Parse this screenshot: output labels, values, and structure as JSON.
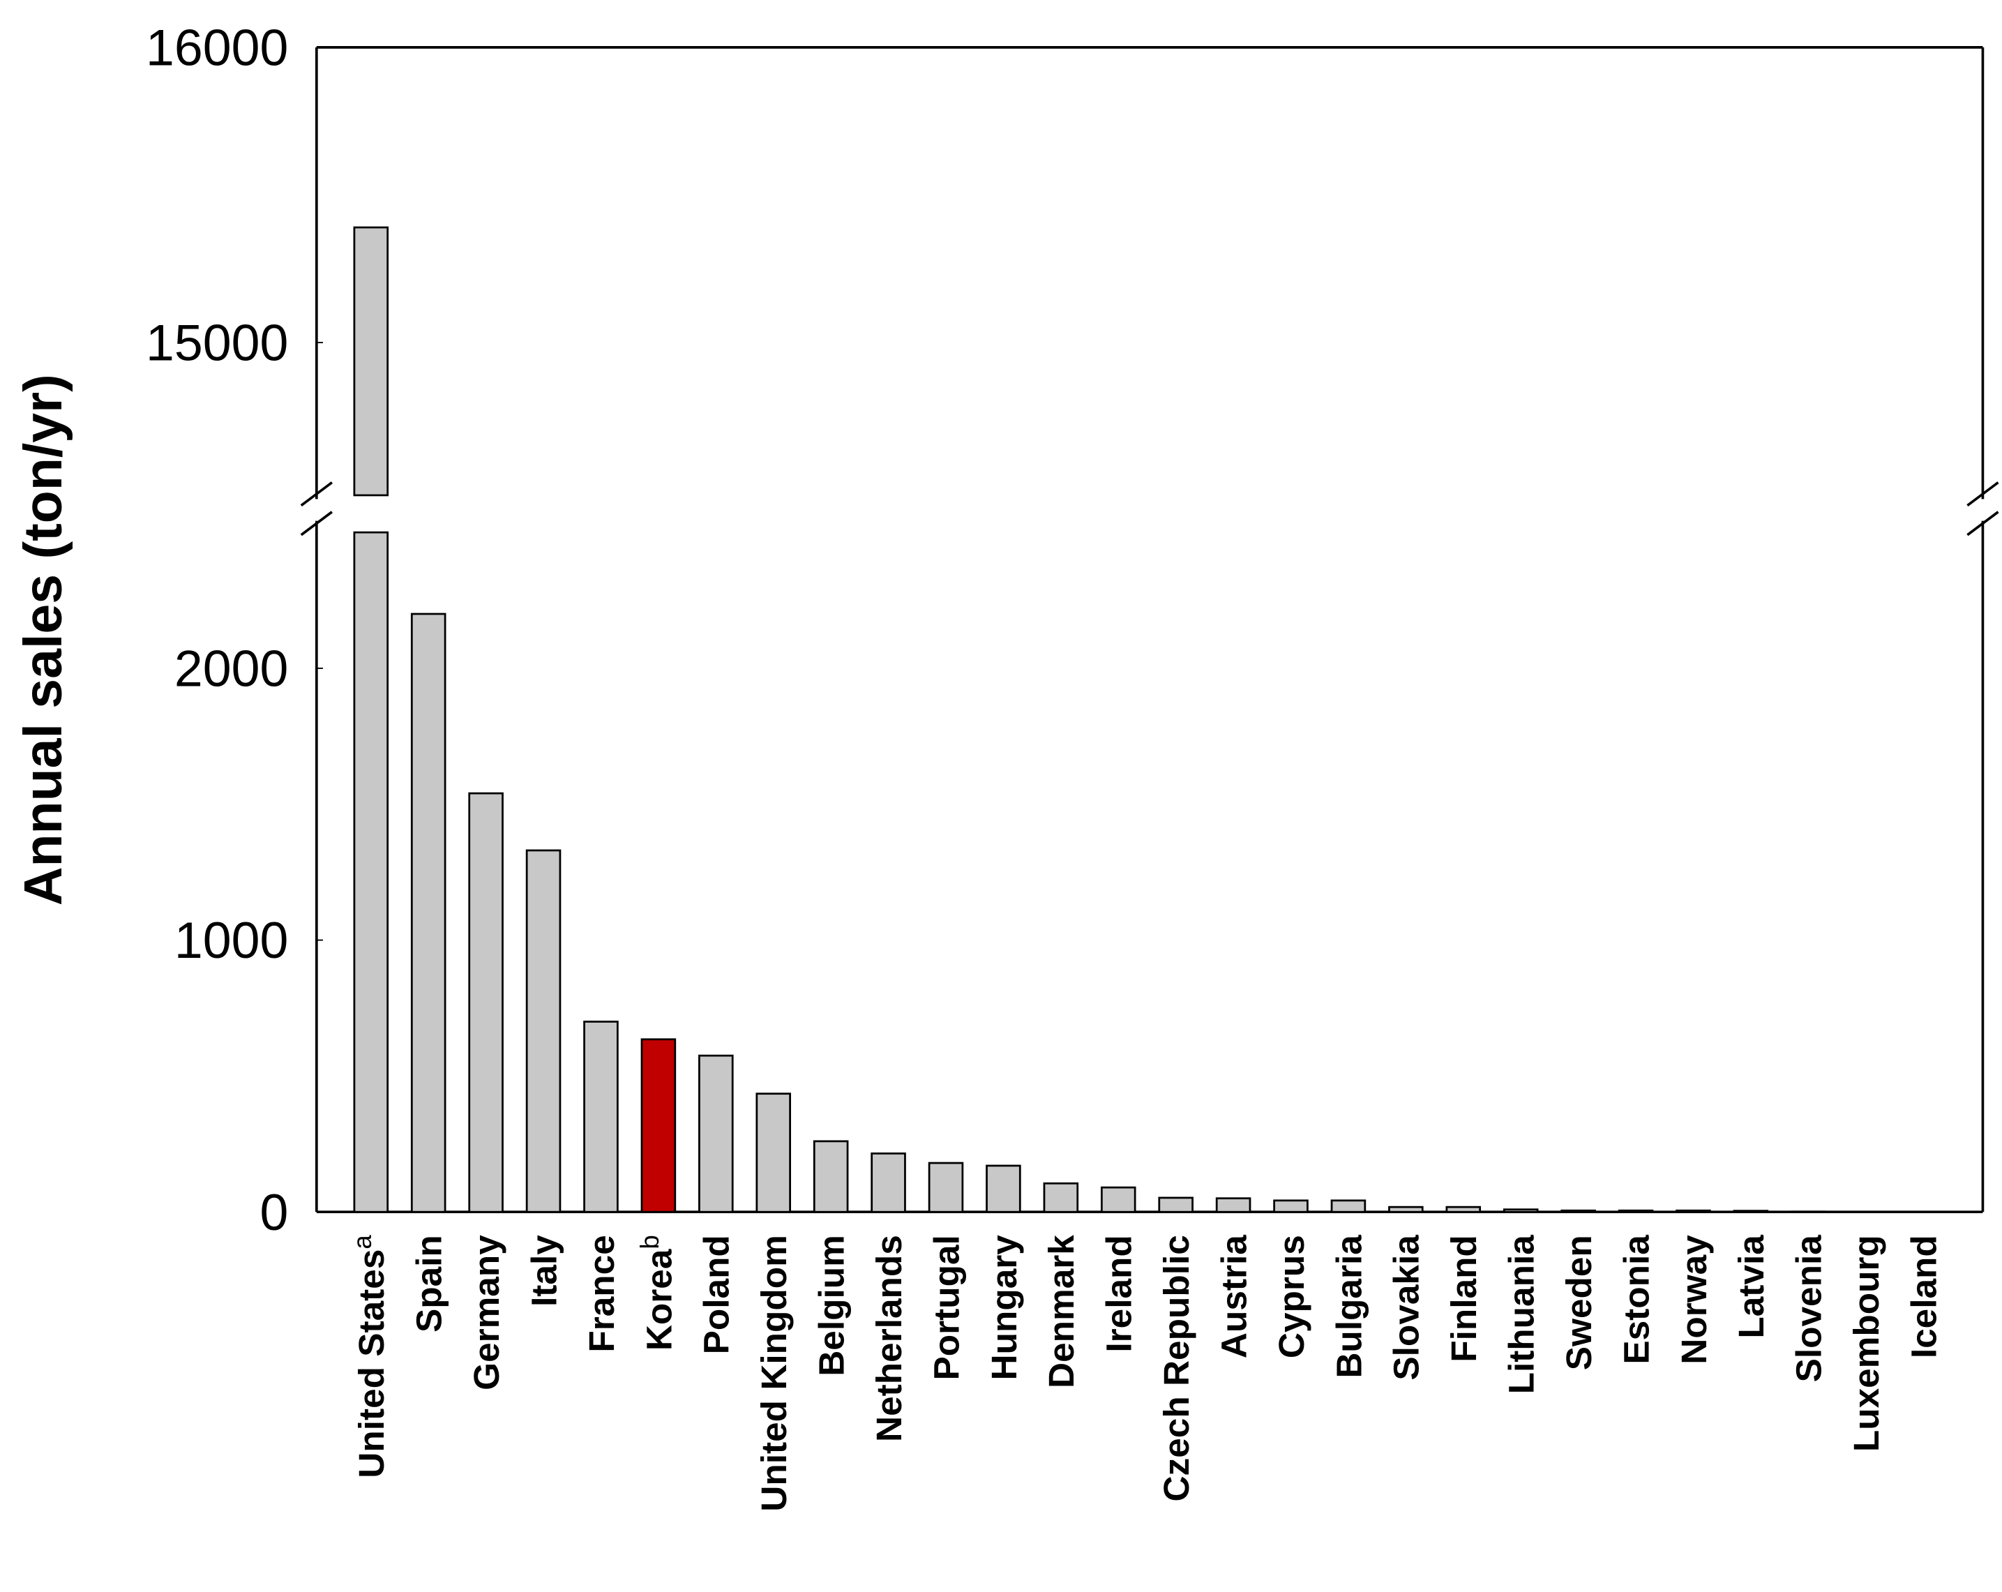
{
  "chart_data": {
    "type": "broken_bar",
    "y_label": "Annual sales (ton/yr)",
    "categories": [
      "United States",
      "Spain",
      "Germany",
      "Italy",
      "France",
      "Korea",
      "Poland",
      "United Kingdom",
      "Belgium",
      "Netherlands",
      "Portugal",
      "Hungary",
      "Denmark",
      "Ireland",
      "Czech Republic",
      "Austria",
      "Cyprus",
      "Bulgaria",
      "Slovakia",
      "Finland",
      "Lithuania",
      "Sweden",
      "Estonia",
      "Norway",
      "Latvia",
      "Slovenia",
      "Luxembourg",
      "Iceland"
    ],
    "superscripts": [
      "a",
      null,
      null,
      null,
      null,
      "b",
      null,
      null,
      null,
      null,
      null,
      null,
      null,
      null,
      null,
      null,
      null,
      null,
      null,
      null,
      null,
      null,
      null,
      null,
      null,
      null,
      null,
      null
    ],
    "values": [
      15390,
      2200,
      1540,
      1330,
      700,
      635,
      575,
      435,
      260,
      215,
      180,
      170,
      105,
      90,
      52,
      50,
      42,
      42,
      18,
      18,
      9,
      5,
      5,
      5,
      4,
      1,
      0.5,
      0.3
    ],
    "colors": [
      "#c8c8c8",
      "#c8c8c8",
      "#c8c8c8",
      "#c8c8c8",
      "#c8c8c8",
      "#c00000",
      "#c8c8c8",
      "#c8c8c8",
      "#c8c8c8",
      "#c8c8c8",
      "#c8c8c8",
      "#c8c8c8",
      "#c8c8c8",
      "#c8c8c8",
      "#c8c8c8",
      "#c8c8c8",
      "#c8c8c8",
      "#c8c8c8",
      "#c8c8c8",
      "#c8c8c8",
      "#c8c8c8",
      "#c8c8c8",
      "#c8c8c8",
      "#c8c8c8",
      "#c8c8c8",
      "#c8c8c8",
      "#c8c8c8",
      "#c8c8c8"
    ],
    "ylim_upper": [
      14500,
      16000
    ],
    "yticks_upper": [
      15000,
      16000
    ],
    "ylim": [
      0,
      2500
    ],
    "yticks": [
      0,
      1000,
      2000
    ]
  }
}
